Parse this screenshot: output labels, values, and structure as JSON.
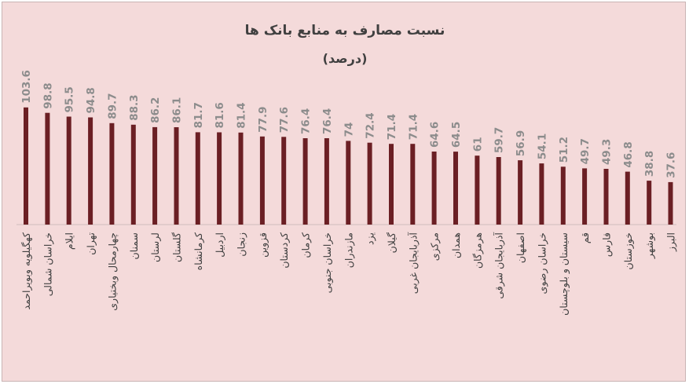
{
  "chart_data": {
    "type": "bar",
    "title": "نسبت مصارف به منابع بانک ها",
    "subtitle": "(درصد)",
    "xlabel": "",
    "ylabel": "",
    "ylim": [
      0,
      110
    ],
    "grid": false,
    "bar_color": "#6b1f24",
    "categories": [
      "کهگیلویه وبویراحمد",
      "خراسان شمالی",
      "ایلام",
      "تهران",
      "چهارمحال وبختیاری",
      "سمنان",
      "لرستان",
      "گلستان",
      "کرمانشاه",
      "اردبیل",
      "زنجان",
      "قزوین",
      "کردستان",
      "کرمان",
      "خراسان جنوبی",
      "مازندران",
      "یزد",
      "گیلان",
      "آذربایجان غربی",
      "مرکزی",
      "همدان",
      "هرمزگان",
      "آذربایجان شرقی",
      "اصفهان",
      "خراسان رضوی",
      "سیستان و بلوچستان",
      "قم",
      "فارس",
      "خوزستان",
      "بوشهر",
      "البرز"
    ],
    "values": [
      103.6,
      98.8,
      95.5,
      94.8,
      89.7,
      88.3,
      86.2,
      86.1,
      81.7,
      81.6,
      81.4,
      77.9,
      77.6,
      76.4,
      76.4,
      74,
      72.4,
      71.4,
      71.4,
      64.6,
      64.5,
      61,
      59.7,
      56.9,
      54.1,
      51.2,
      49.7,
      49.3,
      46.8,
      38.8,
      37.6
    ]
  }
}
